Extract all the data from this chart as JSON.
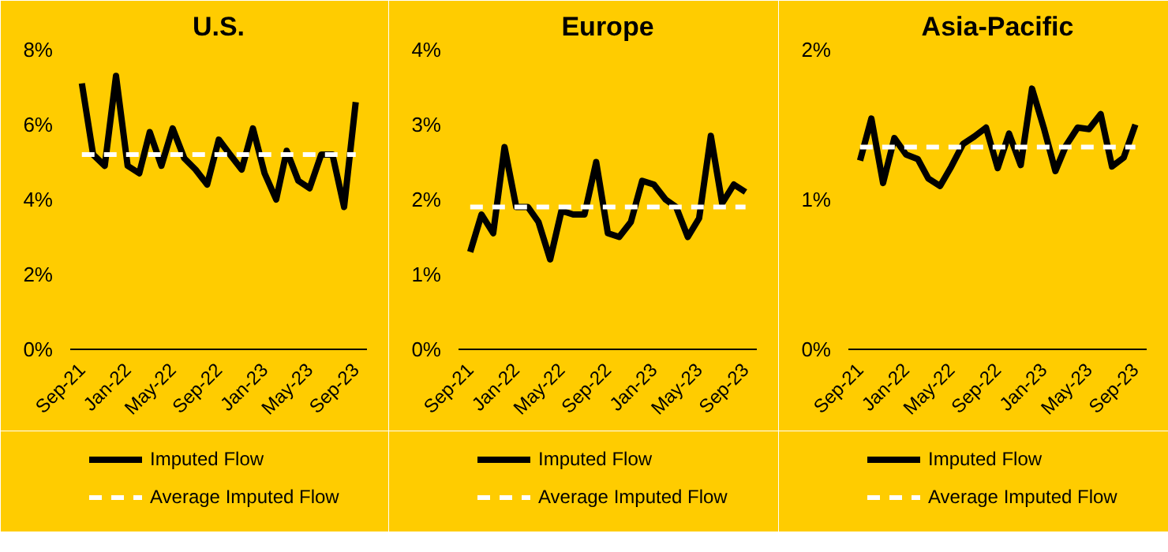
{
  "chart_data": [
    {
      "type": "line",
      "title": "U.S.",
      "x": [
        "2021-09",
        "2021-10",
        "2021-11",
        "2021-12",
        "2022-01",
        "2022-02",
        "2022-03",
        "2022-04",
        "2022-05",
        "2022-06",
        "2022-07",
        "2022-08",
        "2022-09",
        "2022-10",
        "2022-11",
        "2022-12",
        "2023-01",
        "2023-02",
        "2023-03",
        "2023-04",
        "2023-05",
        "2023-06",
        "2023-07",
        "2023-08",
        "2023-09"
      ],
      "series": [
        {
          "name": "Imputed Flow",
          "color": "#000000",
          "values": [
            7.1,
            5.2,
            4.9,
            7.3,
            4.9,
            4.7,
            5.8,
            4.9,
            5.9,
            5.1,
            4.8,
            4.4,
            5.6,
            5.2,
            4.8,
            5.9,
            4.7,
            4.0,
            5.3,
            4.5,
            4.3,
            5.2,
            5.2,
            3.8,
            6.6
          ]
        }
      ],
      "ref_lines": [
        {
          "axis": "y",
          "value": 5.2,
          "label": "Average Imputed Flow",
          "color": "#ffffff",
          "line_style": "dashed"
        }
      ],
      "xlim": [
        "2021-08",
        "2023-10"
      ],
      "xticks": [
        {
          "value": "2021-09",
          "label": "Sep-21"
        },
        {
          "value": "2022-01",
          "label": "Jan-22"
        },
        {
          "value": "2022-05",
          "label": "May-22"
        },
        {
          "value": "2022-09",
          "label": "Sep-22"
        },
        {
          "value": "2023-01",
          "label": "Jan-23"
        },
        {
          "value": "2023-05",
          "label": "May-23"
        },
        {
          "value": "2023-09",
          "label": "Sep-23"
        }
      ],
      "ylim": [
        0,
        8
      ],
      "yticks": [
        {
          "value": 0,
          "label": "0%"
        },
        {
          "value": 2,
          "label": "2%"
        },
        {
          "value": 4,
          "label": "4%"
        },
        {
          "value": 6,
          "label": "6%"
        },
        {
          "value": 8,
          "label": "8%"
        }
      ],
      "grid": false,
      "legend": "bottom",
      "marker": "none",
      "line_style": "solid"
    },
    {
      "type": "line",
      "title": "Europe",
      "x": [
        "2021-09",
        "2021-10",
        "2021-11",
        "2021-12",
        "2022-01",
        "2022-02",
        "2022-03",
        "2022-04",
        "2022-05",
        "2022-06",
        "2022-07",
        "2022-08",
        "2022-09",
        "2022-10",
        "2022-11",
        "2022-12",
        "2023-01",
        "2023-02",
        "2023-03",
        "2023-04",
        "2023-05",
        "2023-06",
        "2023-07",
        "2023-08",
        "2023-09"
      ],
      "series": [
        {
          "name": "Imputed Flow",
          "color": "#000000",
          "values": [
            1.3,
            1.8,
            1.55,
            2.7,
            1.9,
            1.9,
            1.7,
            1.2,
            1.85,
            1.8,
            1.8,
            2.5,
            1.55,
            1.5,
            1.7,
            2.25,
            2.2,
            2.0,
            1.9,
            1.5,
            1.75,
            2.85,
            1.95,
            2.2,
            2.1
          ]
        }
      ],
      "ref_lines": [
        {
          "axis": "y",
          "value": 1.9,
          "label": "Average Imputed Flow",
          "color": "#ffffff",
          "line_style": "dashed"
        }
      ],
      "xlim": [
        "2021-08",
        "2023-10"
      ],
      "xticks": [
        {
          "value": "2021-09",
          "label": "Sep-21"
        },
        {
          "value": "2022-01",
          "label": "Jan-22"
        },
        {
          "value": "2022-05",
          "label": "May-22"
        },
        {
          "value": "2022-09",
          "label": "Sep-22"
        },
        {
          "value": "2023-01",
          "label": "Jan-23"
        },
        {
          "value": "2023-05",
          "label": "May-23"
        },
        {
          "value": "2023-09",
          "label": "Sep-23"
        }
      ],
      "ylim": [
        0,
        4
      ],
      "yticks": [
        {
          "value": 0,
          "label": "0%"
        },
        {
          "value": 1,
          "label": "1%"
        },
        {
          "value": 2,
          "label": "2%"
        },
        {
          "value": 3,
          "label": "3%"
        },
        {
          "value": 4,
          "label": "4%"
        }
      ],
      "grid": false,
      "legend": "bottom",
      "marker": "none",
      "line_style": "solid"
    },
    {
      "type": "line",
      "title": "Asia-Pacific",
      "x": [
        "2021-09",
        "2021-10",
        "2021-11",
        "2021-12",
        "2022-01",
        "2022-02",
        "2022-03",
        "2022-04",
        "2022-05",
        "2022-06",
        "2022-07",
        "2022-08",
        "2022-09",
        "2022-10",
        "2022-11",
        "2022-12",
        "2023-01",
        "2023-02",
        "2023-03",
        "2023-04",
        "2023-05",
        "2023-06",
        "2023-07",
        "2023-08",
        "2023-09"
      ],
      "series": [
        {
          "name": "Imputed Flow",
          "color": "#000000",
          "values": [
            1.26,
            1.54,
            1.11,
            1.41,
            1.3,
            1.27,
            1.14,
            1.09,
            1.22,
            1.37,
            1.42,
            1.48,
            1.21,
            1.44,
            1.23,
            1.74,
            1.48,
            1.19,
            1.36,
            1.48,
            1.47,
            1.57,
            1.22,
            1.28,
            1.5
          ]
        }
      ],
      "ref_lines": [
        {
          "axis": "y",
          "value": 1.35,
          "label": "Average Imputed Flow",
          "color": "#ffffff",
          "line_style": "dashed"
        }
      ],
      "xlim": [
        "2021-08",
        "2023-10"
      ],
      "xticks": [
        {
          "value": "2021-09",
          "label": "Sep-21"
        },
        {
          "value": "2022-01",
          "label": "Jan-22"
        },
        {
          "value": "2022-05",
          "label": "May-22"
        },
        {
          "value": "2022-09",
          "label": "Sep-22"
        },
        {
          "value": "2023-01",
          "label": "Jan-23"
        },
        {
          "value": "2023-05",
          "label": "May-23"
        },
        {
          "value": "2023-09",
          "label": "Sep-23"
        }
      ],
      "ylim": [
        0,
        2
      ],
      "yticks": [
        {
          "value": 0,
          "label": "0%"
        },
        {
          "value": 1,
          "label": "1%"
        },
        {
          "value": 2,
          "label": "2%"
        }
      ],
      "grid": false,
      "legend": "bottom",
      "marker": "none",
      "line_style": "solid"
    }
  ]
}
